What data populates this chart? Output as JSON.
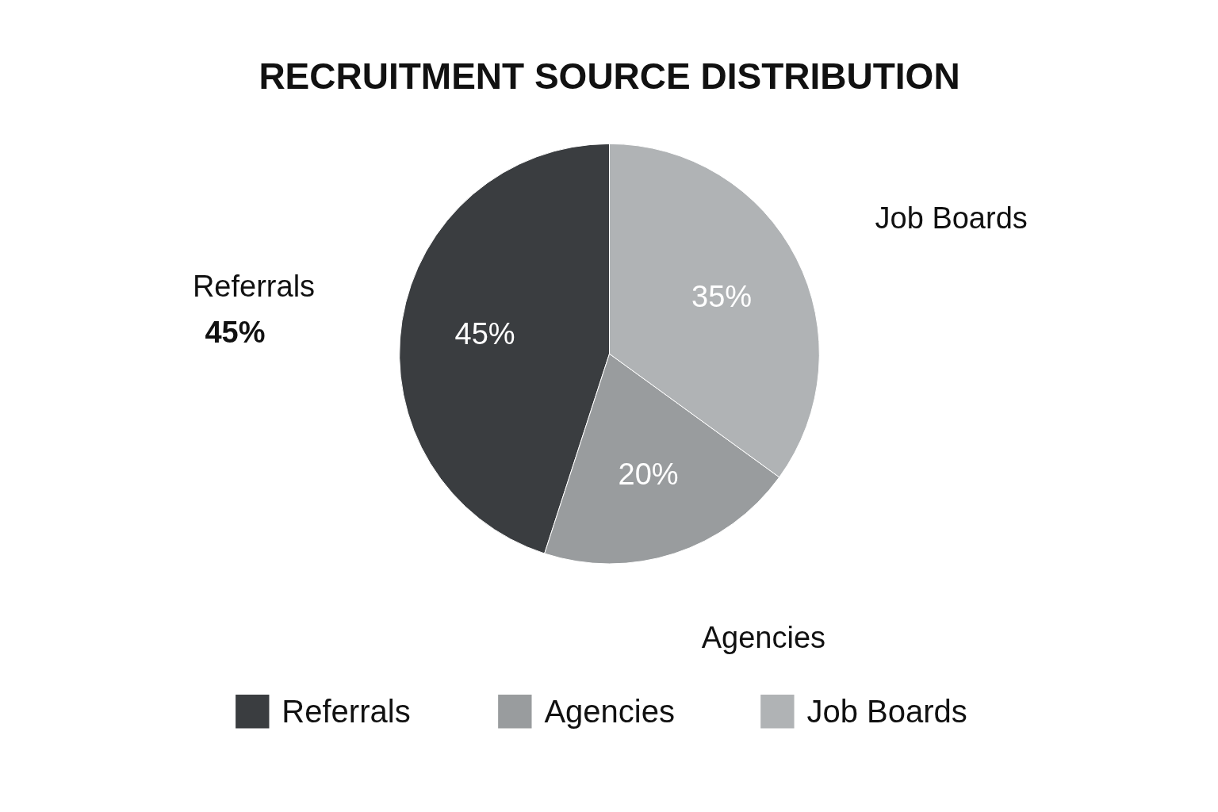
{
  "chart_data": {
    "type": "pie",
    "title": "RECRUITMENT SOURCE DISTRIBUTION",
    "categories": [
      "Referrals",
      "Agencies",
      "Job Boards"
    ],
    "values": [
      45,
      20,
      35
    ],
    "colors": [
      "#3a3d40",
      "#999c9e",
      "#b0b3b5"
    ],
    "value_labels": [
      "45%",
      "20%",
      "35%"
    ],
    "annotations": [
      {
        "text": "45%",
        "x": "Referrals"
      }
    ],
    "legend": "bottom"
  }
}
